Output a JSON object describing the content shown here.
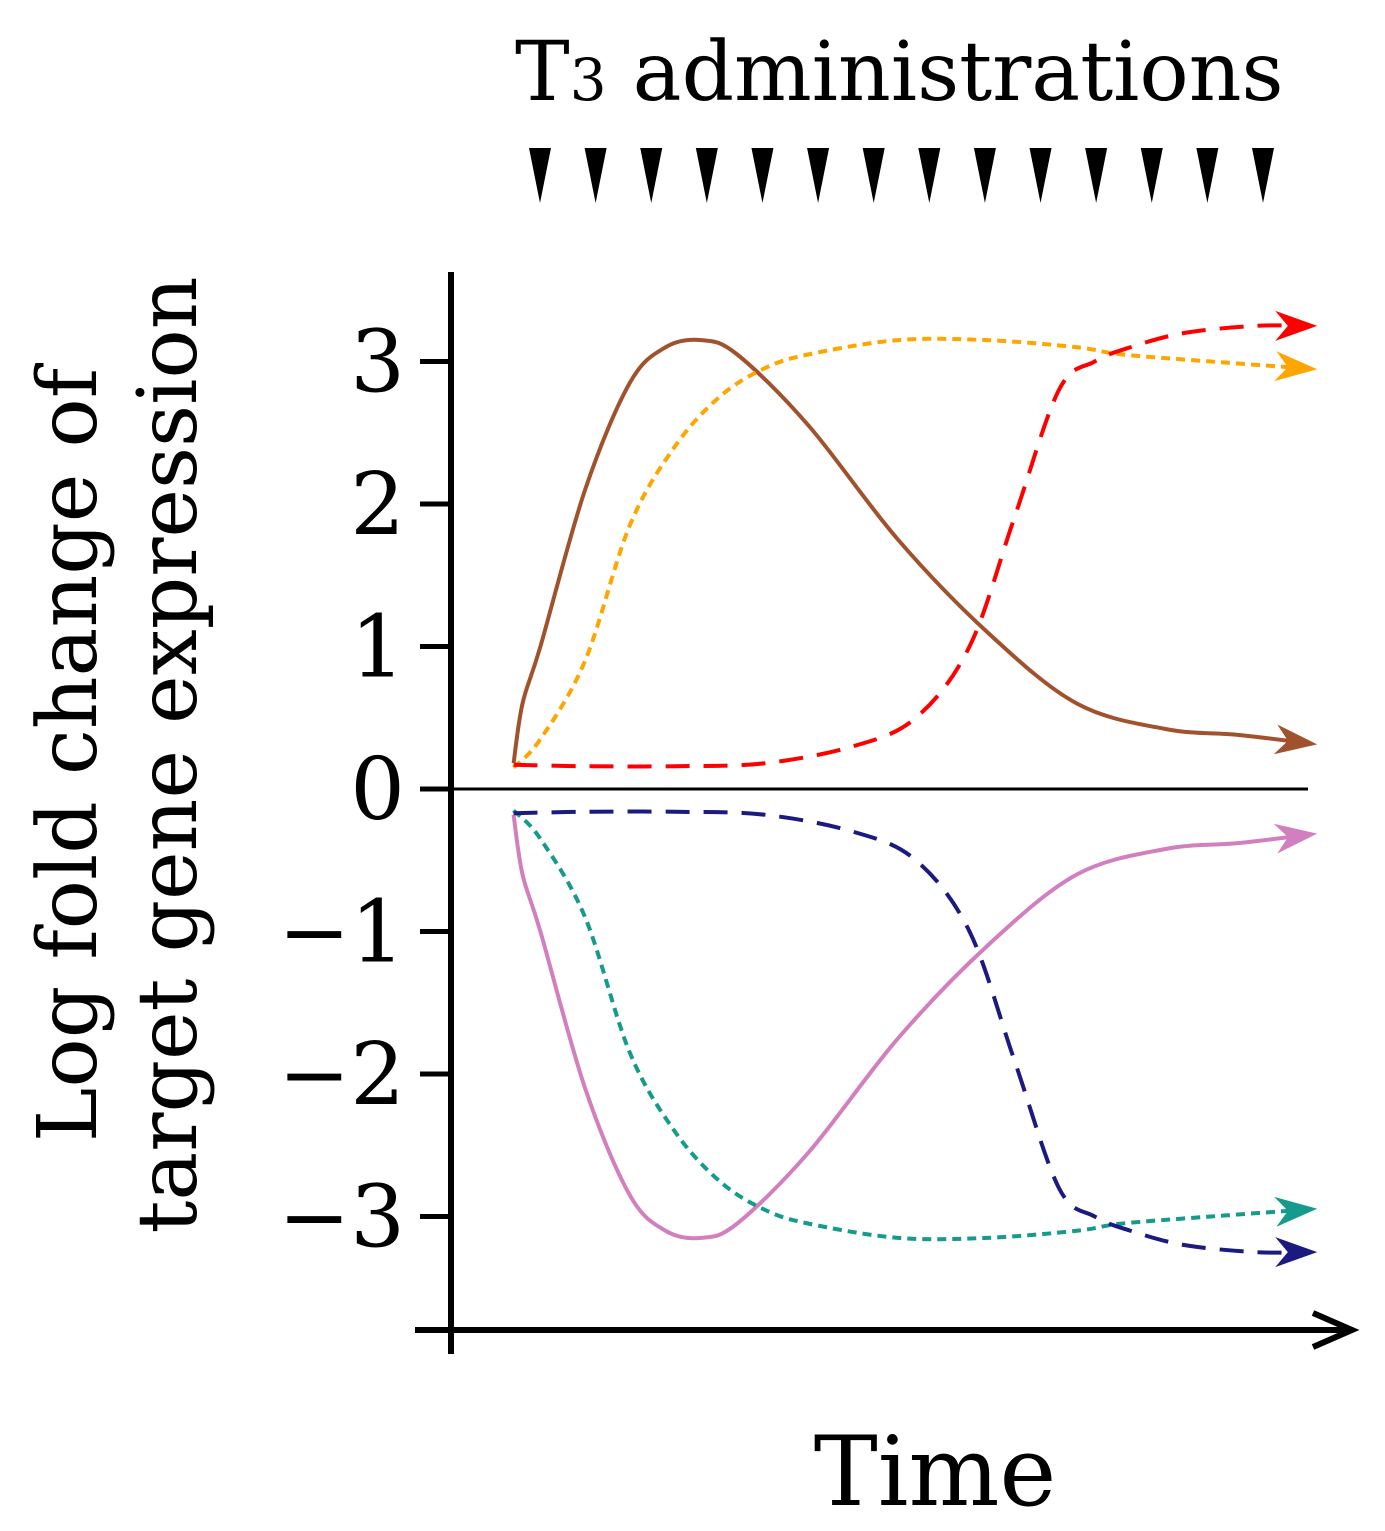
{
  "chart_data": {
    "type": "line",
    "title_main": "T",
    "title_sub": "3",
    "title_rest": " administrations",
    "administration_count": 14,
    "xlabel": "Time",
    "ylabel_line1": "Log fold change of",
    "ylabel_line2": "target gene expression",
    "ylim": [
      -3.8,
      3.6
    ],
    "xlim": [
      0,
      10
    ],
    "yticks": [
      {
        "value": 3,
        "label": "3"
      },
      {
        "value": 2,
        "label": "2"
      },
      {
        "value": 1,
        "label": "1"
      },
      {
        "value": 0,
        "label": "0"
      },
      {
        "value": -1,
        "label": "−1"
      },
      {
        "value": -2,
        "label": "−2"
      },
      {
        "value": -3,
        "label": "−3"
      }
    ],
    "series": [
      {
        "name": "brown-solid",
        "color": "#a0522d",
        "style": "solid",
        "x": [
          0.7,
          0.8,
          1.0,
          1.5,
          2.0,
          2.4,
          2.8,
          3.2,
          4.0,
          5.0,
          6.0,
          7.0,
          8.0,
          8.8,
          9.6
        ],
        "y": [
          0.18,
          0.6,
          1.0,
          2.1,
          2.85,
          3.1,
          3.15,
          3.05,
          2.55,
          1.75,
          1.1,
          0.6,
          0.42,
          0.38,
          0.32
        ]
      },
      {
        "name": "orange-dotted",
        "color": "#ffa500",
        "style": "dotted",
        "x": [
          0.7,
          1.0,
          1.5,
          2.0,
          2.5,
          3.0,
          3.5,
          4.0,
          5.0,
          6.0,
          7.0,
          7.5,
          8.5,
          9.6
        ],
        "y": [
          0.15,
          0.35,
          0.9,
          1.85,
          2.4,
          2.75,
          2.95,
          3.05,
          3.15,
          3.15,
          3.1,
          3.05,
          3.0,
          2.95
        ]
      },
      {
        "name": "red-dashed",
        "color": "#ff0000",
        "style": "dashed",
        "x": [
          0.7,
          1.5,
          2.5,
          3.5,
          4.5,
          5.2,
          5.8,
          6.3,
          6.8,
          7.2,
          7.6,
          8.2,
          9.0,
          9.6
        ],
        "y": [
          0.17,
          0.16,
          0.16,
          0.18,
          0.3,
          0.5,
          1.0,
          1.9,
          2.8,
          3.0,
          3.1,
          3.2,
          3.25,
          3.25
        ]
      },
      {
        "name": "pink-solid",
        "color": "#d17fbf",
        "style": "solid",
        "x": [
          0.7,
          0.8,
          1.0,
          1.5,
          2.0,
          2.4,
          2.8,
          3.2,
          4.0,
          5.0,
          6.0,
          7.0,
          8.0,
          8.8,
          9.6
        ],
        "y": [
          -0.18,
          -0.6,
          -1.0,
          -2.1,
          -2.85,
          -3.1,
          -3.15,
          -3.05,
          -2.55,
          -1.75,
          -1.1,
          -0.6,
          -0.42,
          -0.38,
          -0.32
        ]
      },
      {
        "name": "teal-dotted",
        "color": "#159a8c",
        "style": "dotted",
        "x": [
          0.7,
          1.0,
          1.5,
          2.0,
          2.5,
          3.0,
          3.5,
          4.0,
          5.0,
          6.0,
          7.0,
          7.5,
          8.5,
          9.6
        ],
        "y": [
          -0.15,
          -0.35,
          -0.9,
          -1.85,
          -2.4,
          -2.75,
          -2.95,
          -3.05,
          -3.15,
          -3.15,
          -3.1,
          -3.05,
          -3.0,
          -2.95
        ]
      },
      {
        "name": "navy-dashed",
        "color": "#1a1a80",
        "style": "dashed",
        "x": [
          0.7,
          1.5,
          2.5,
          3.5,
          4.5,
          5.2,
          5.8,
          6.3,
          6.8,
          7.2,
          7.6,
          8.2,
          9.0,
          9.6
        ],
        "y": [
          -0.17,
          -0.16,
          -0.16,
          -0.18,
          -0.3,
          -0.5,
          -1.0,
          -1.9,
          -2.8,
          -3.0,
          -3.1,
          -3.2,
          -3.25,
          -3.25
        ]
      }
    ]
  }
}
